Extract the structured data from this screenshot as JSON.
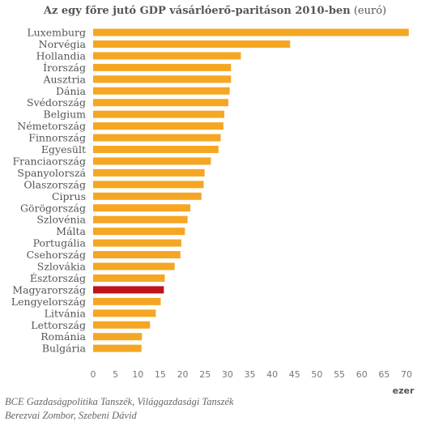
{
  "title": "Az egy főre jutó GDP vásárlóerő-paritáson 2010-ben",
  "title_unit": "(euró)",
  "x_unit_label": "ezer",
  "credits": {
    "line1": "BCE Gazdaságpolitika Tanszék, Világgazdasági Tanszék",
    "line2": "Berezvai Zombor, Szebeni Dávid"
  },
  "colors": {
    "bar": "#f5a623",
    "highlight": "#c0121a",
    "text": "#555555"
  },
  "chart_data": {
    "type": "bar",
    "orientation": "horizontal",
    "title": "Az egy főre jutó GDP vásárlóerő-paritáson 2010-ben (euró)",
    "xlabel": "ezer",
    "ylabel": "",
    "xlim": [
      0,
      70
    ],
    "xticks": [
      0,
      5,
      10,
      15,
      20,
      25,
      30,
      35,
      40,
      45,
      50,
      55,
      60,
      65,
      70
    ],
    "grid": false,
    "highlight": "Magyarország",
    "categories": [
      "Luxemburg",
      "Norvégia",
      "Hollandia",
      "Írország",
      "Ausztria",
      "Dánia",
      "Svédország",
      "Belgium",
      "Németország",
      "Finnország",
      "Egyesült",
      "Franciaország",
      "Spanyolorszá",
      "Olaszország",
      "Ciprus",
      "Görögország",
      "Szlovénia",
      "Málta",
      "Portugália",
      "Csehország",
      "Szlovákia",
      "Észtország",
      "Magyarország",
      "Lengyelország",
      "Litvánia",
      "Lettország",
      "Románia",
      "Bulgária"
    ],
    "values": [
      70.5,
      44,
      33,
      30.8,
      30.8,
      30.5,
      30.2,
      29.3,
      29.1,
      28.5,
      28,
      26.3,
      24.9,
      24.7,
      24.2,
      21.7,
      21.1,
      20.5,
      19.7,
      19.5,
      18.2,
      16,
      15.8,
      15.1,
      14,
      12.7,
      10.9,
      10.8
    ]
  }
}
